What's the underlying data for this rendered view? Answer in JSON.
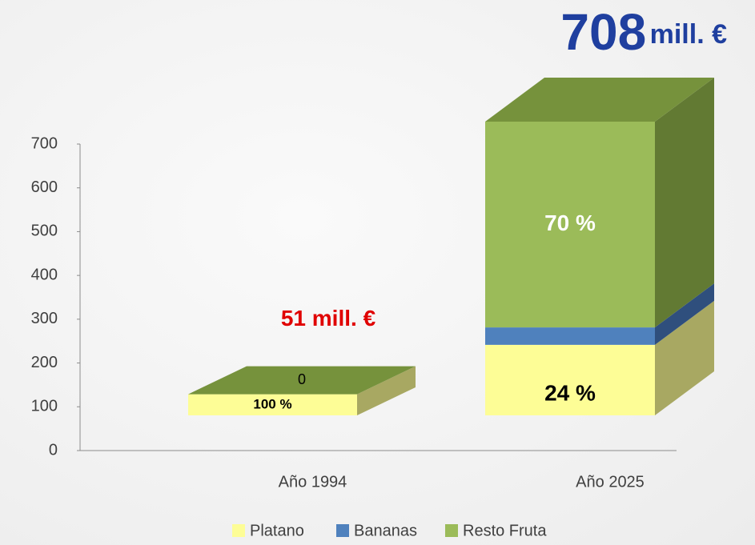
{
  "chart_data": {
    "type": "bar3d_stacked",
    "categories": [
      "Año 1994",
      "Año 2025"
    ],
    "series": [
      {
        "name": "Platano",
        "color": "#fdfd96",
        "side_color": "#a8a862",
        "values": [
          51,
          170
        ],
        "percent_labels": [
          "100 %",
          "24 %"
        ]
      },
      {
        "name": "Bananas",
        "color": "#4f81bd",
        "side_color": "#2f4f7d",
        "values": [
          0,
          42
        ]
      },
      {
        "name": "Resto Fruta",
        "color": "#9bbb59",
        "side_color": "#627a33",
        "top_color": "#76923c",
        "values": [
          0,
          496
        ],
        "percent_labels": [
          "0",
          "70 %"
        ]
      }
    ],
    "totals": [
      51,
      708
    ],
    "total_unit": "mill. €",
    "ylim": [
      0,
      700
    ],
    "yticks": [
      0,
      100,
      200,
      300,
      400,
      500,
      600,
      700
    ],
    "legend": "bottom"
  }
}
